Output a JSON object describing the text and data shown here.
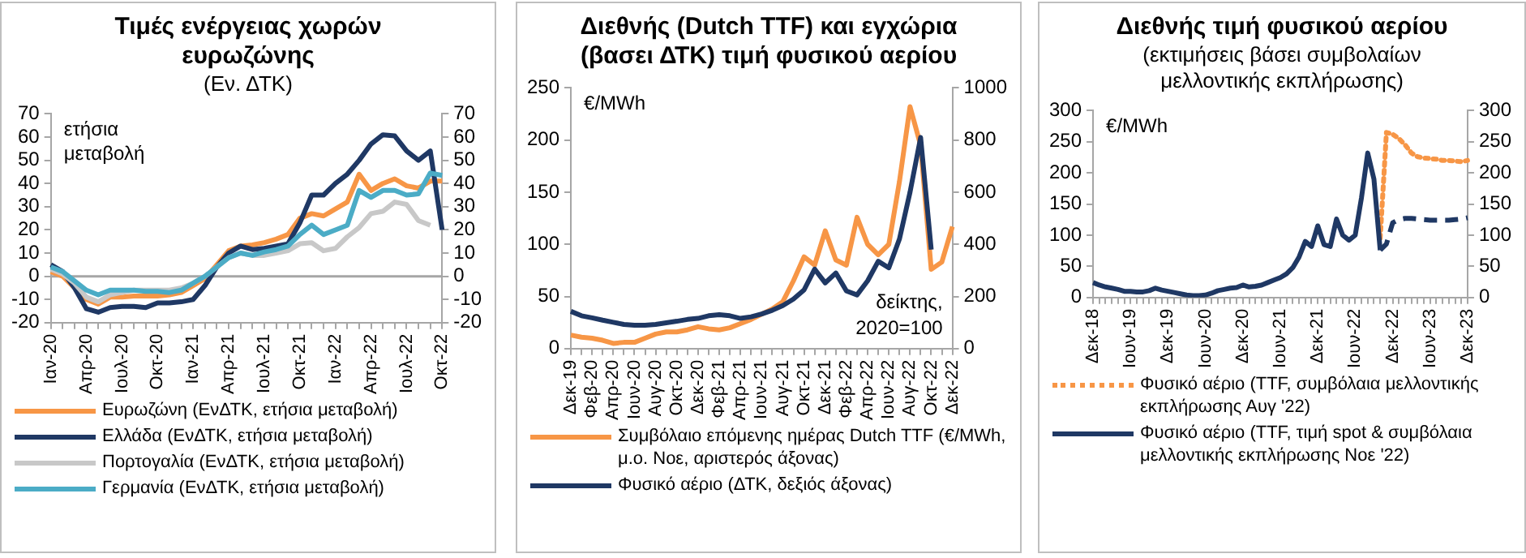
{
  "chart_data": [
    {
      "type": "line",
      "title": "Τιμές ενέργειας χωρών ευρωζώνης",
      "subtitle": "(Εν. ΔΤΚ)",
      "ylabel": "ετήσια μεταβολή",
      "categories": [
        "Ιαν-20",
        null,
        null,
        "Απρ-20",
        null,
        null,
        "Ιουλ-20",
        null,
        null,
        "Οκτ-20",
        null,
        null,
        "Ιαν-21",
        null,
        null,
        "Απρ-21",
        null,
        null,
        "Ιουλ-21",
        null,
        null,
        "Οκτ-21",
        null,
        null,
        "Ιαν-22",
        null,
        null,
        "Απρ-22",
        null,
        null,
        "Ιουλ-22",
        null,
        null,
        "Οκτ-22"
      ],
      "series": [
        {
          "name": "Ευρωζώνη (ΕνΔΤΚ, ετήσια μεταβολή)",
          "color": "#f79646",
          "values": [
            2,
            0,
            -5,
            -10,
            -12,
            -9,
            -9,
            -8.5,
            -8.5,
            -8.5,
            -8,
            -7,
            -4,
            -1,
            5,
            11,
            13,
            13.5,
            14.5,
            16,
            18,
            25,
            27,
            26,
            29,
            32,
            44,
            37,
            40,
            42,
            39,
            38,
            41,
            41
          ]
        },
        {
          "name": "Ελλάδα (ΕνΔΤΚ, ετήσια μεταβολή)",
          "color": "#1f3864",
          "values": [
            5,
            2,
            -5,
            -14,
            -15.5,
            -13.5,
            -13,
            -13,
            -13.5,
            -11.5,
            -11.5,
            -11,
            -10,
            -4,
            4,
            10,
            13,
            11.5,
            12,
            13,
            14,
            23,
            35,
            35,
            40,
            44,
            50,
            57,
            61,
            60.5,
            54,
            50,
            54,
            20
          ]
        },
        {
          "name": "Πορτογαλία (ΕνΔΤΚ, ετήσια μεταβολή)",
          "color": "#c8c8c8",
          "values": [
            3,
            1,
            -3,
            -9,
            -11,
            -8,
            -7,
            -6,
            -6,
            -6,
            -6,
            -5,
            -3,
            0,
            4,
            8,
            10,
            9,
            9,
            10,
            11,
            14,
            14.5,
            11,
            12,
            17,
            21,
            27,
            28,
            32,
            31,
            24,
            22,
            null
          ]
        },
        {
          "name": "Γερμανία (ΕνΔΤΚ, ετήσια μεταβολή)",
          "color": "#4bacc6",
          "values": [
            4,
            2,
            -2,
            -6,
            -8,
            -6,
            -6,
            -6,
            -6.5,
            -6.5,
            -7,
            -6,
            -3,
            0,
            4,
            8,
            10,
            9,
            10.5,
            11.5,
            13,
            18,
            22,
            18,
            20,
            22,
            37,
            34,
            37,
            37,
            35,
            35.5,
            44.5,
            43.5
          ]
        }
      ],
      "ylim": [
        -20,
        70
      ],
      "yticks": [
        -20,
        -10,
        0,
        10,
        20,
        30,
        40,
        50,
        60,
        70
      ],
      "y2lim": [
        -20,
        70
      ],
      "y2ticks": [
        -20,
        -10,
        0,
        10,
        20,
        30,
        40,
        50,
        60,
        70
      ],
      "ref_lines": [
        {
          "axis": "y",
          "value": 0,
          "color": "#a6a6a6"
        }
      ],
      "grid": false,
      "legend": "bottom",
      "marker": "none",
      "line_style": "solid"
    },
    {
      "type": "line",
      "title": "Διεθνής (Dutch TTF) και εγχώρια (βασει ΔΤΚ) τιμή φυσικού αερίου",
      "ylabel": "€/MWh",
      "y2label": "δείκτης, 2020=100",
      "categories": [
        "Δεκ-19",
        null,
        "Φεβ-20",
        null,
        "Απρ-20",
        null,
        "Ιουν-20",
        null,
        "Αυγ-20",
        null,
        "Οκτ-20",
        null,
        "Δεκ-20",
        null,
        "Φεβ-21",
        null,
        "Απρ-21",
        null,
        "Ιουν-21",
        null,
        "Αυγ-21",
        null,
        "Οκτ-21",
        null,
        "Δεκ-21",
        null,
        "Φεβ-22",
        null,
        "Απρ-22",
        null,
        "Ιουν-22",
        null,
        "Αυγ-22",
        null,
        "Οκτ-22",
        null,
        "Δεκ-22"
      ],
      "series": [
        {
          "name": "Συμβόλαιο επόμενης ημέρας Dutch TTF (€/MWh, μ.ο. Νοε, αριστερός άξονας)",
          "color": "#f79646",
          "values": [
            13,
            11,
            10,
            8,
            5,
            6,
            6,
            10,
            14,
            16,
            16,
            18,
            21,
            19,
            18,
            20,
            24,
            28,
            33,
            38,
            45,
            65,
            88,
            80,
            113,
            85,
            80,
            126,
            100,
            90,
            100,
            160,
            232,
            195,
            76,
            83,
            117
          ]
        },
        {
          "name": "Φυσικό αέριο (ΔΤΚ, δεξιός άξονας)",
          "color": "#1f3864",
          "axis": "y2",
          "values": [
            143,
            126,
            118,
            109,
            101,
            93,
            90,
            90,
            93,
            99,
            105,
            112,
            116,
            126,
            130,
            126,
            116,
            122,
            133,
            147,
            165,
            190,
            225,
            305,
            252,
            290,
            221,
            206,
            260,
            335,
            310,
            420,
            600,
            810,
            380,
            null,
            null
          ]
        }
      ],
      "ylim": [
        0,
        250
      ],
      "yticks": [
        0,
        50,
        100,
        150,
        200,
        250
      ],
      "y2lim": [
        0,
        1000
      ],
      "y2ticks": [
        0,
        200,
        400,
        600,
        800,
        1000
      ],
      "grid": false,
      "legend": "bottom",
      "marker": "none",
      "line_style": "solid"
    },
    {
      "type": "line",
      "title": "Διεθνής τιμή φυσικού αερίου",
      "subtitle": "(εκτιμήσεις βάσει συμβολαίων μελλοντικής εκπλήρωσης)",
      "ylabel": "€/MWh",
      "categories": [
        "Δεκ-18",
        null,
        null,
        null,
        null,
        null,
        "Ιουν-19",
        null,
        null,
        null,
        null,
        null,
        "Δεκ-19",
        null,
        null,
        null,
        null,
        null,
        "Ιουν-20",
        null,
        null,
        null,
        null,
        null,
        "Δεκ-20",
        null,
        null,
        null,
        null,
        null,
        "Ιουν-21",
        null,
        null,
        null,
        null,
        null,
        "Δεκ-21",
        null,
        null,
        null,
        null,
        null,
        "Ιουν-22",
        null,
        null,
        null,
        null,
        null,
        "Δεκ-22",
        null,
        null,
        null,
        null,
        null,
        "Ιουν-23",
        null,
        null,
        null,
        null,
        null,
        "Δεκ-23"
      ],
      "series": [
        {
          "name": "Φυσικό αέριο (TTF, συμβόλαια μελλοντικής εκπλήρωσης Αυγ '22)",
          "color": "#f79646",
          "line_style": "dotted",
          "values": [
            null,
            null,
            null,
            null,
            null,
            null,
            null,
            null,
            null,
            null,
            null,
            null,
            null,
            null,
            null,
            null,
            null,
            null,
            null,
            null,
            null,
            null,
            null,
            null,
            null,
            null,
            null,
            null,
            null,
            null,
            null,
            null,
            null,
            null,
            null,
            null,
            null,
            null,
            null,
            null,
            null,
            null,
            null,
            null,
            null,
            null,
            95,
            265,
            262,
            255,
            245,
            232,
            226,
            224,
            223,
            222,
            220,
            220,
            219,
            218,
            220
          ]
        },
        {
          "name": "Φυσικό αέριο (TTF, τιμή spot & συμβόλαια μελλοντικής εκπλήρωσης Νοε '22)",
          "color": "#1f3864",
          "line_style": "solid",
          "values": [
            24,
            20,
            17,
            15,
            13,
            10,
            10,
            9,
            9,
            11,
            15,
            12,
            10,
            8,
            6,
            4,
            3,
            3,
            4,
            7,
            11,
            13,
            15,
            16,
            20,
            17,
            18,
            20,
            24,
            28,
            32,
            38,
            48,
            65,
            90,
            82,
            115,
            85,
            82,
            126,
            100,
            92,
            100,
            160,
            232,
            190,
            76,
            null,
            null,
            null,
            null,
            null,
            null,
            null,
            null,
            null,
            null,
            null,
            null,
            null,
            null
          ]
        },
        {
          "color": "#1f3864",
          "line_style": "dashed",
          "values": [
            null,
            null,
            null,
            null,
            null,
            null,
            null,
            null,
            null,
            null,
            null,
            null,
            null,
            null,
            null,
            null,
            null,
            null,
            null,
            null,
            null,
            null,
            null,
            null,
            null,
            null,
            null,
            null,
            null,
            null,
            null,
            null,
            null,
            null,
            null,
            null,
            null,
            null,
            null,
            null,
            null,
            null,
            null,
            null,
            null,
            null,
            76,
            86,
            120,
            125,
            127,
            127,
            126,
            125,
            124,
            124,
            124,
            124,
            125,
            126,
            128
          ]
        }
      ],
      "ylim": [
        0,
        300
      ],
      "yticks": [
        0,
        50,
        100,
        150,
        200,
        250,
        300
      ],
      "y2lim": [
        0,
        300
      ],
      "y2ticks": [
        0,
        50,
        100,
        150,
        200,
        250,
        300
      ],
      "grid": false,
      "legend": "bottom",
      "marker": "none"
    }
  ]
}
